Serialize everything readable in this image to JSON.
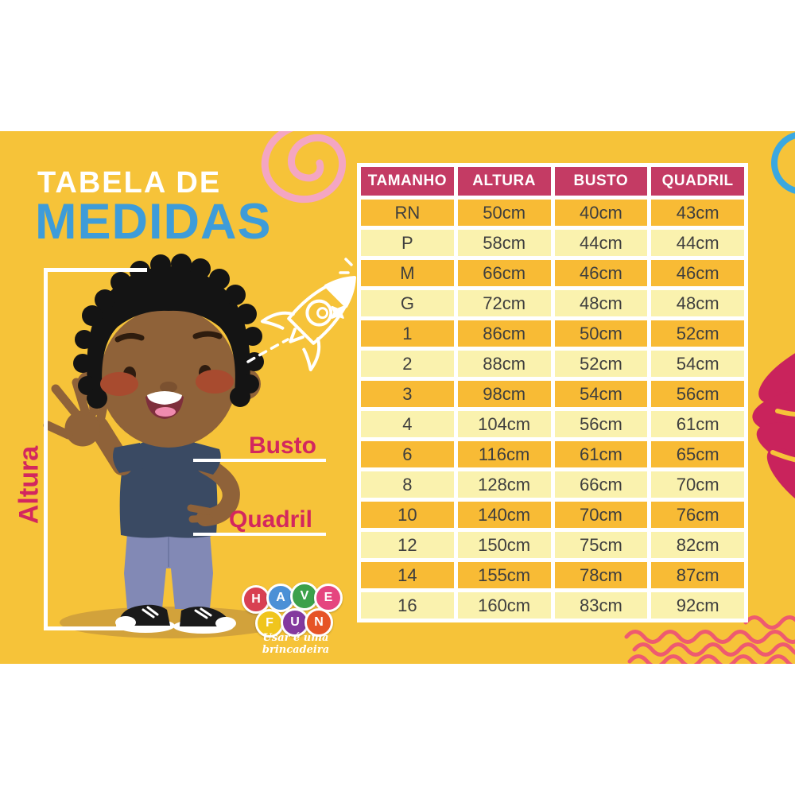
{
  "title": {
    "line1": "TABELA DE",
    "line2": "MEDIDAS"
  },
  "figure_labels": {
    "altura": "Altura",
    "busto": "Busto",
    "quadril": "Quadril"
  },
  "logo": {
    "letters": [
      {
        "char": "H",
        "color": "#D84052",
        "row": 1
      },
      {
        "char": "A",
        "color": "#4B90D6",
        "row": 1
      },
      {
        "char": "V",
        "color": "#3CA14B",
        "row": 1
      },
      {
        "char": "E",
        "color": "#E5457F",
        "row": 1
      },
      {
        "char": "F",
        "color": "#F0C51D",
        "row": 2
      },
      {
        "char": "U",
        "color": "#83399E",
        "row": 2
      },
      {
        "char": "N",
        "color": "#E65426",
        "row": 2
      }
    ],
    "tagline": "Usar é uma brincadeira"
  },
  "chart_data": {
    "type": "table",
    "title": "TABELA DE MEDIDAS",
    "columns": [
      "TAMANHO",
      "ALTURA",
      "BUSTO",
      "QUADRIL"
    ],
    "rows": [
      [
        "RN",
        "50cm",
        "40cm",
        "43cm"
      ],
      [
        "P",
        "58cm",
        "44cm",
        "44cm"
      ],
      [
        "M",
        "66cm",
        "46cm",
        "46cm"
      ],
      [
        "G",
        "72cm",
        "48cm",
        "48cm"
      ],
      [
        "1",
        "86cm",
        "50cm",
        "52cm"
      ],
      [
        "2",
        "88cm",
        "52cm",
        "54cm"
      ],
      [
        "3",
        "98cm",
        "54cm",
        "56cm"
      ],
      [
        "4",
        "104cm",
        "56cm",
        "61cm"
      ],
      [
        "6",
        "116cm",
        "61cm",
        "65cm"
      ],
      [
        "8",
        "128cm",
        "66cm",
        "70cm"
      ],
      [
        "10",
        "140cm",
        "70cm",
        "76cm"
      ],
      [
        "12",
        "150cm",
        "75cm",
        "82cm"
      ],
      [
        "14",
        "155cm",
        "78cm",
        "87cm"
      ],
      [
        "16",
        "160cm",
        "83cm",
        "92cm"
      ]
    ],
    "header_bg": "#C43B64",
    "row_colors": [
      "#F8BB35",
      "#FAF2AE"
    ],
    "layout": "header row magenta, 14 data rows alternating yellow/cream, white 5px grid gaps"
  },
  "colors": {
    "background": "#F6C339",
    "accent_magenta": "#D3275E",
    "accent_blue": "#3E9CD9"
  }
}
